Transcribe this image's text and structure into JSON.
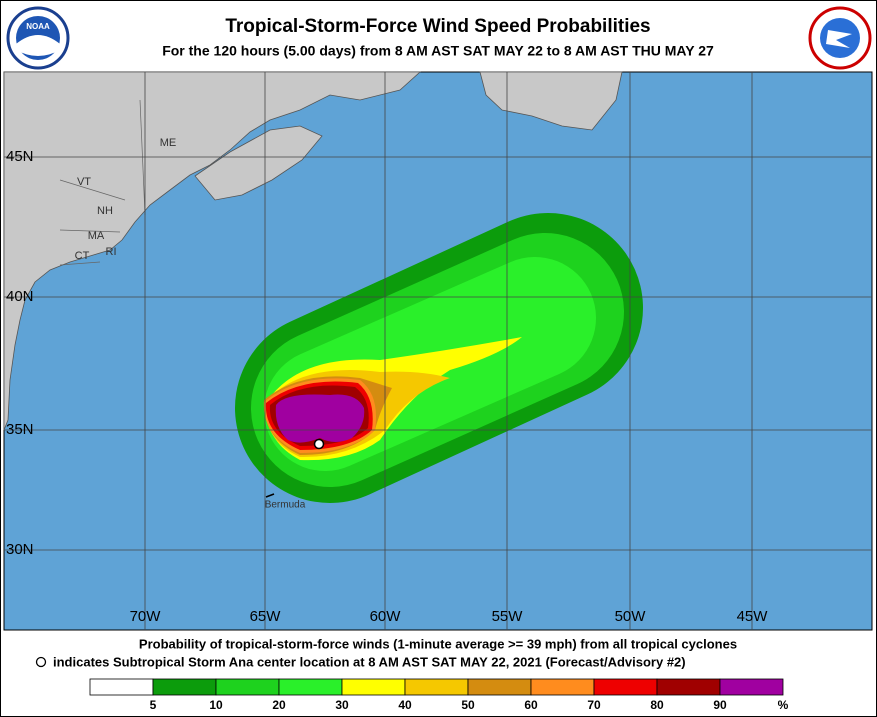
{
  "header": {
    "title": "Tropical-Storm-Force Wind Speed Probabilities",
    "subtitle": "For the 120 hours (5.00 days) from 8 AM AST SAT MAY 22 to 8 AM AST THU MAY 27",
    "logo_left": "NOAA"
  },
  "map": {
    "latitude_labels": [
      "45N",
      "40N",
      "35N",
      "30N"
    ],
    "longitude_labels": [
      "70W",
      "65W",
      "60W",
      "55W",
      "50W",
      "45W"
    ],
    "place_labels": [
      "ME",
      "VT",
      "NH",
      "MA",
      "CT",
      "RI",
      "Bermuda"
    ]
  },
  "footer": {
    "line1": "Probability of tropical-storm-force winds (1-minute average >= 39 mph) from all tropical cyclones",
    "line2": "indicates Subtropical Storm Ana center location at 8 AM AST SAT MAY 22, 2021 (Forecast/Advisory #2)"
  },
  "legend": {
    "colors": [
      "#ffffff",
      "#0c9c0c",
      "#1ed21e",
      "#2af02a",
      "#ffff00",
      "#f5c800",
      "#d48c10",
      "#ff8c1e",
      "#ee0000",
      "#a00000",
      "#a000a0"
    ],
    "labels": [
      5,
      10,
      20,
      30,
      40,
      50,
      60,
      70,
      80,
      90,
      "%"
    ]
  }
}
